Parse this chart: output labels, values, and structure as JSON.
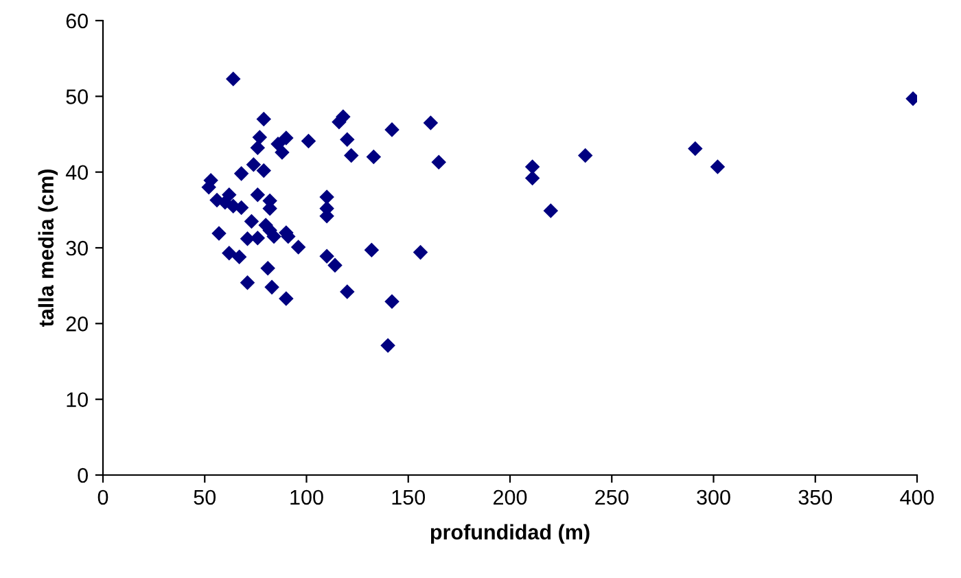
{
  "chart_data": {
    "type": "scatter",
    "xlabel": "profundidad (m)",
    "ylabel": "talla media (cm)",
    "xlim": [
      0,
      400
    ],
    "ylim": [
      0,
      60
    ],
    "xticks": [
      0,
      50,
      100,
      150,
      200,
      250,
      300,
      350,
      400
    ],
    "yticks": [
      0,
      10,
      20,
      30,
      40,
      50,
      60
    ],
    "grid": false,
    "legend": false,
    "marker": "diamond",
    "series": [
      {
        "color": "#000080",
        "x": [
          64,
          79,
          118,
          116,
          161,
          142,
          77,
          90,
          86,
          120,
          76,
          101,
          88,
          122,
          133,
          165,
          74,
          79,
          68,
          53,
          52,
          62,
          76,
          56,
          60,
          64,
          68,
          82,
          82,
          110,
          110,
          110,
          73,
          80,
          82,
          90,
          84,
          57,
          71,
          76,
          91,
          96,
          62,
          67,
          110,
          114,
          81,
          132,
          156,
          71,
          83,
          90,
          120,
          142,
          140,
          211,
          211,
          220,
          237,
          291,
          302,
          398
        ],
        "values": [
          52.3,
          47,
          47.3,
          46.6,
          46.5,
          45.6,
          44.6,
          44.5,
          43.7,
          44.3,
          43.2,
          44.1,
          42.6,
          42.2,
          42,
          41.3,
          41,
          40.2,
          39.8,
          38.9,
          38,
          37,
          37,
          36.3,
          36,
          35.5,
          35.3,
          36.2,
          35.2,
          36.7,
          35.2,
          34.2,
          33.5,
          33,
          32.3,
          32,
          31.5,
          31.9,
          31.2,
          31.3,
          31.5,
          30.1,
          29.3,
          28.8,
          28.9,
          27.7,
          27.3,
          29.7,
          29.4,
          25.4,
          24.8,
          23.3,
          24.2,
          22.9,
          17.1,
          40.7,
          39.2,
          34.9,
          42.2,
          43.1,
          40.7,
          49.7
        ]
      }
    ]
  }
}
